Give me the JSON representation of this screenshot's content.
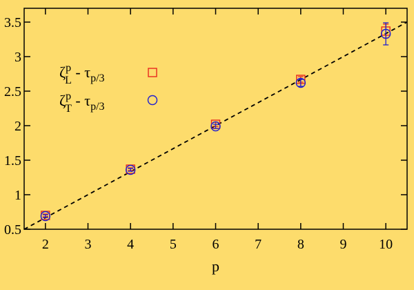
{
  "chart_data": {
    "type": "scatter",
    "title": "",
    "xlabel": "p",
    "ylabel": "",
    "xlim": [
      1.5,
      10.5
    ],
    "ylim": [
      0.5,
      3.7
    ],
    "xticks": [
      2,
      3,
      4,
      5,
      6,
      7,
      8,
      9,
      10
    ],
    "yticks": [
      0.5,
      1,
      1.5,
      2,
      2.5,
      3,
      3.5
    ],
    "xtick_labels": [
      "2",
      "3",
      "4",
      "5",
      "6",
      "7",
      "8",
      "9",
      "10"
    ],
    "ytick_labels": [
      "0.5",
      "1",
      "1.5",
      "2",
      "2.5",
      "3",
      "3.5"
    ],
    "grid": false,
    "legend_position": "upper-left",
    "series": [
      {
        "label_main": "ζ",
        "label_sup": "p",
        "label_sub": "L",
        "label_tail": " - τ",
        "label_tail_sub": "p/3",
        "marker": "square",
        "color": "#e8281e",
        "x": [
          2,
          4,
          6,
          8,
          10
        ],
        "y": [
          0.7,
          1.37,
          2.02,
          2.67,
          3.37
        ],
        "err": [
          0.02,
          0.02,
          0.03,
          0.04,
          0.1
        ]
      },
      {
        "label_main": "ζ",
        "label_sup": "p",
        "label_sub": "T",
        "label_tail": " - τ",
        "label_tail_sub": "p/3",
        "marker": "circle",
        "color": "#1f1fd0",
        "x": [
          2,
          4,
          6,
          8,
          10
        ],
        "y": [
          0.69,
          1.36,
          1.99,
          2.62,
          3.33
        ],
        "err": [
          0.02,
          0.02,
          0.03,
          0.05,
          0.16
        ]
      }
    ],
    "reference_line": {
      "style": "dashed",
      "color": "#000000",
      "x": [
        1.5,
        10.5
      ],
      "y": [
        0.5,
        3.5
      ]
    }
  }
}
